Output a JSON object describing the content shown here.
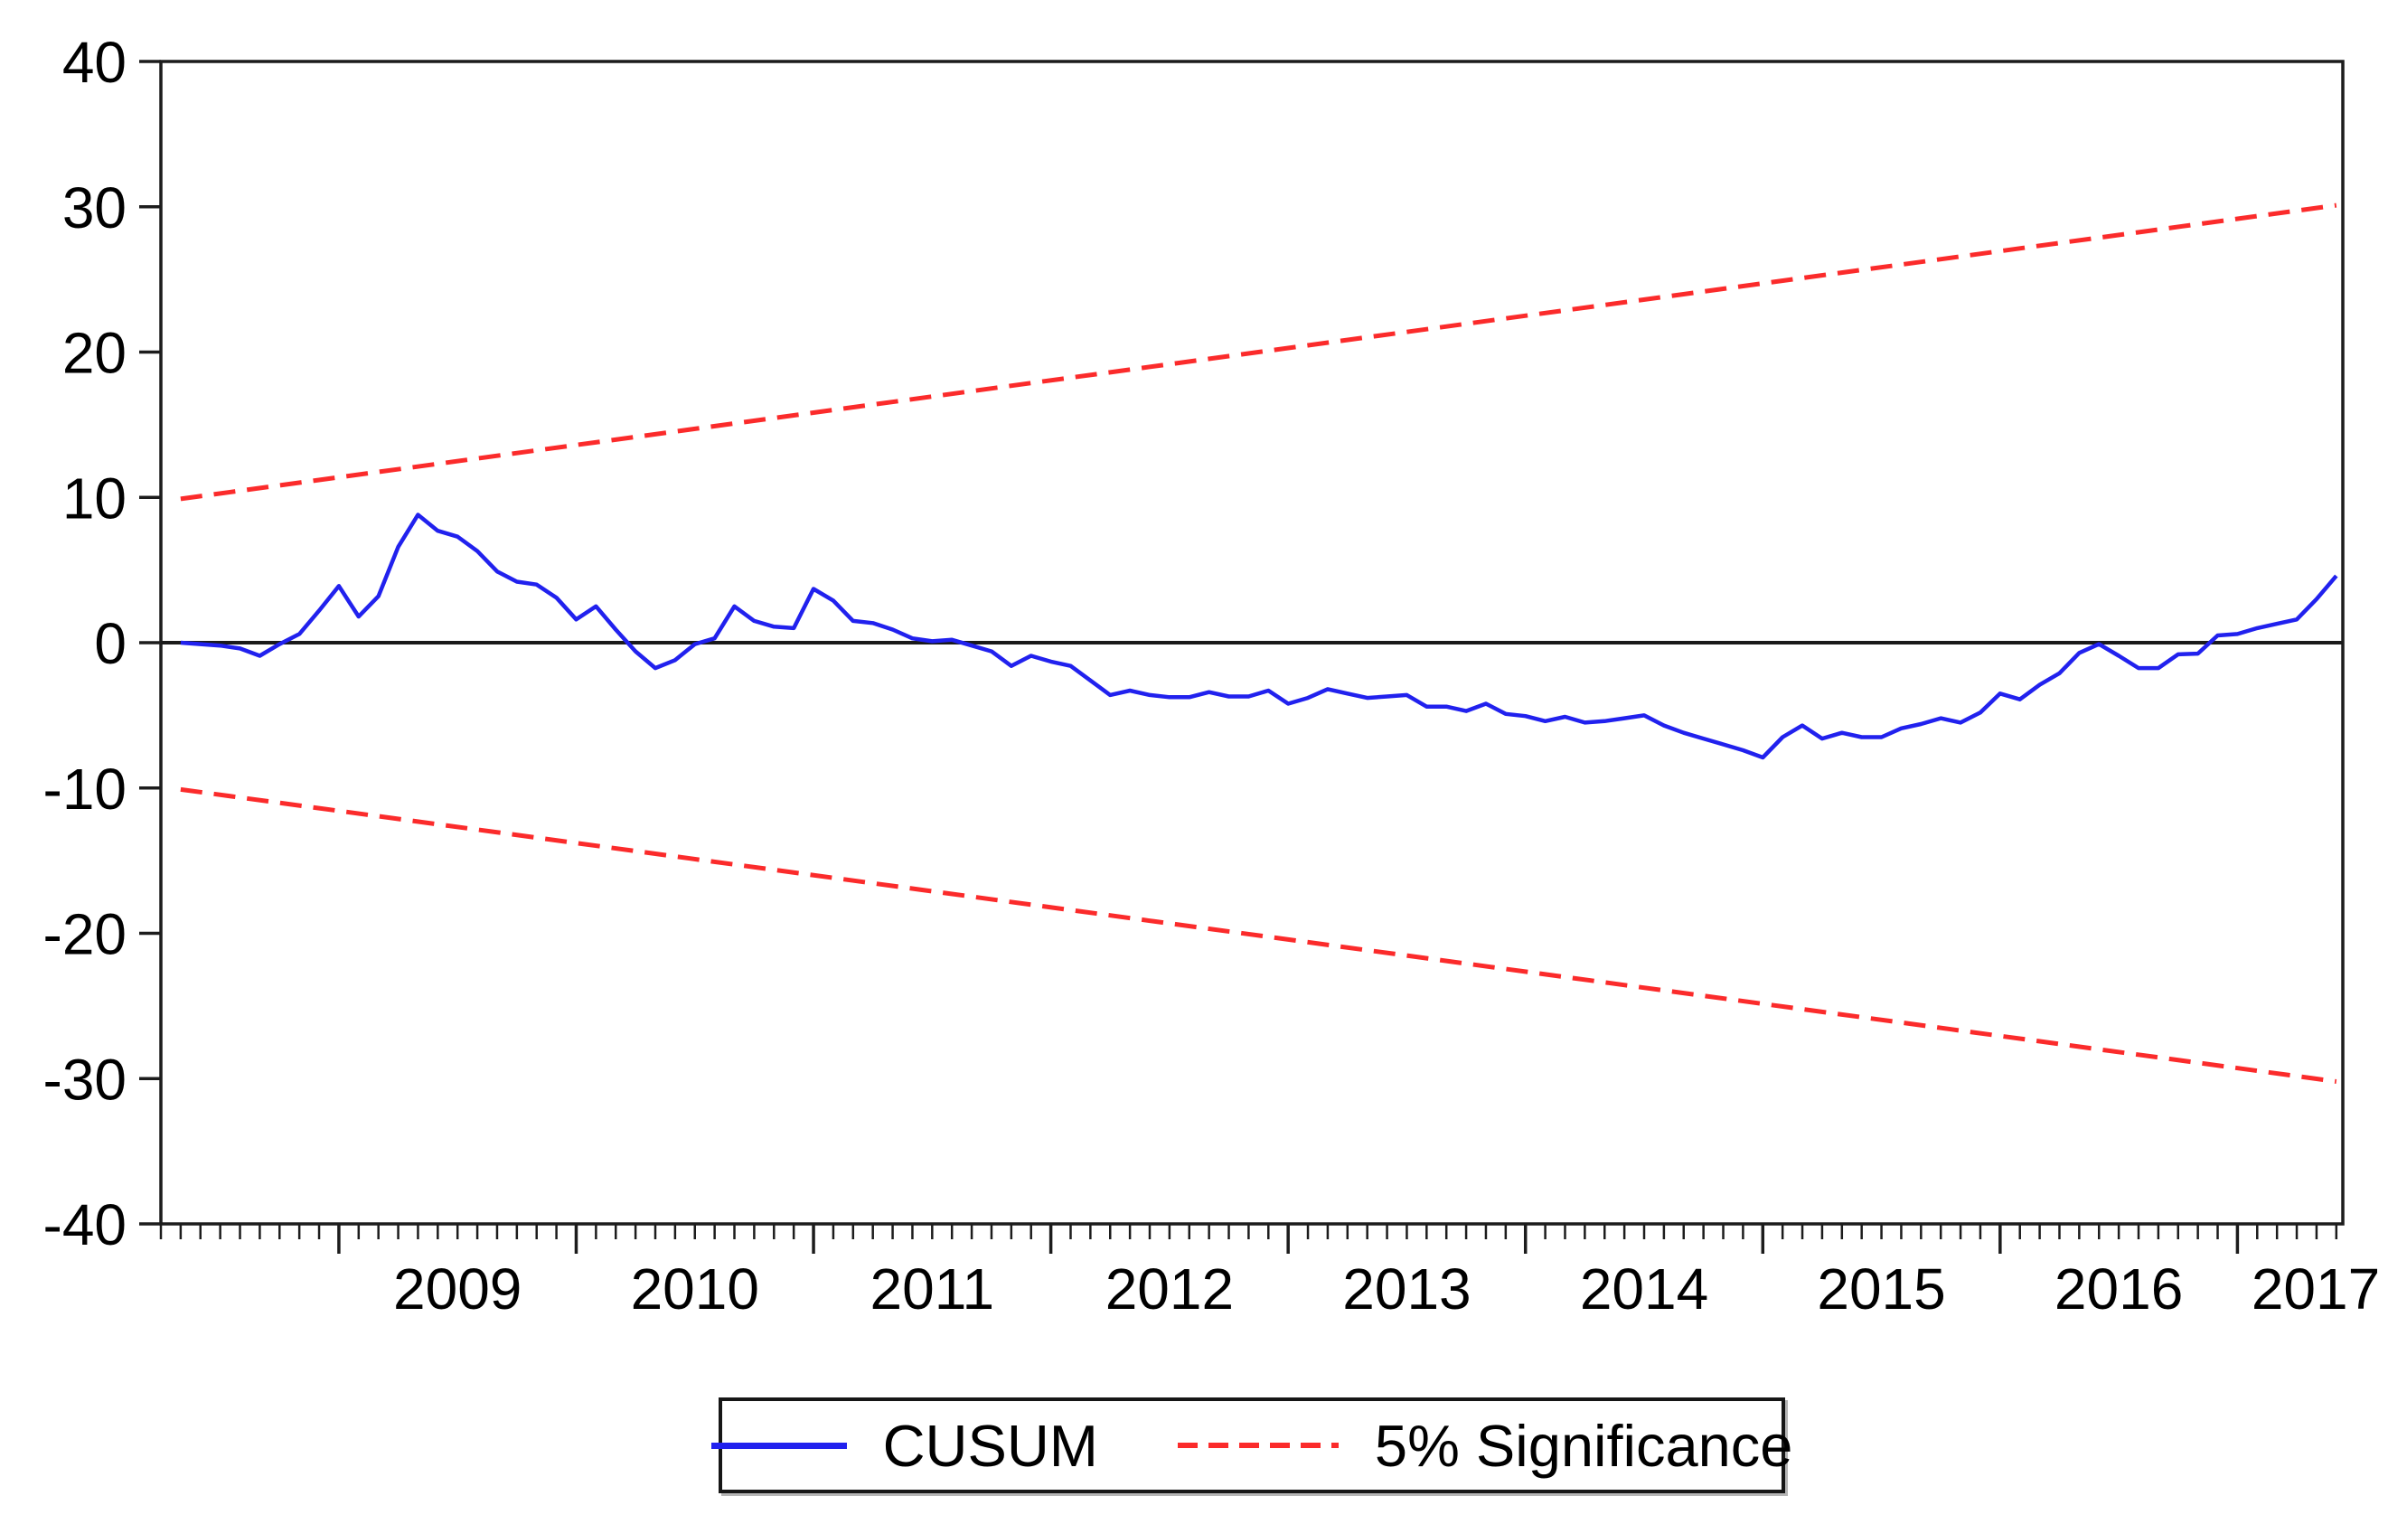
{
  "chart_data": {
    "type": "line",
    "frequency": "monthly",
    "start_period": "2008M05",
    "end_period": "2017M06",
    "series": [
      {
        "name": "CUSUM",
        "style": "solid",
        "color": "#2121ee",
        "values": [
          0.0,
          -0.1,
          -0.2,
          -0.4,
          -0.9,
          -0.1,
          0.6,
          2.2,
          3.9,
          1.8,
          3.2,
          6.6,
          8.8,
          7.7,
          7.3,
          6.3,
          4.9,
          4.2,
          4.0,
          3.1,
          1.6,
          2.5,
          0.9,
          -0.6,
          -1.75,
          -1.2,
          -0.1,
          0.3,
          2.5,
          1.5,
          1.1,
          1.0,
          3.7,
          2.9,
          1.5,
          1.35,
          0.9,
          0.3,
          0.1,
          0.2,
          -0.2,
          -0.6,
          -1.6,
          -0.9,
          -1.3,
          -1.6,
          -2.6,
          -3.6,
          -3.3,
          -3.6,
          -3.75,
          -3.75,
          -3.4,
          -3.7,
          -3.7,
          -3.3,
          -4.2,
          -3.8,
          -3.2,
          -3.5,
          -3.8,
          -3.7,
          -3.6,
          -4.4,
          -4.4,
          -4.7,
          -4.2,
          -4.9,
          -5.05,
          -5.4,
          -5.1,
          -5.5,
          -5.4,
          -5.2,
          -5.0,
          -5.7,
          -6.2,
          -6.6,
          -7.0,
          -7.4,
          -7.9,
          -6.5,
          -5.7,
          -6.6,
          -6.2,
          -6.5,
          -6.5,
          -5.9,
          -5.6,
          -5.2,
          -5.5,
          -4.8,
          -3.5,
          -3.9,
          -2.9,
          -2.1,
          -0.7,
          -0.1,
          -0.9,
          -1.75,
          -1.75,
          -0.8,
          -0.75,
          0.5,
          0.6,
          1.0,
          1.3,
          1.6,
          3.0,
          4.6
        ]
      }
    ],
    "significance_bands": {
      "label": "5% Significance",
      "style": "dashed",
      "color": "#fb2b2b",
      "upper": {
        "start": 9.9,
        "end": 30.1
      },
      "lower": {
        "start": -10.1,
        "end": -30.2
      }
    },
    "x_axis": {
      "year_labels": [
        "2009",
        "2010",
        "2011",
        "2012",
        "2013",
        "2014",
        "2015",
        "2016",
        "2017"
      ],
      "minor_ticks": "monthly",
      "major_ticks": "yearly"
    },
    "y_axis": {
      "min": -40,
      "max": 40,
      "ticks": [
        40,
        30,
        20,
        10,
        0,
        -10,
        -20,
        -30,
        -40
      ]
    },
    "zero_line": true,
    "legend": {
      "items": [
        {
          "label": "CUSUM",
          "style": "solid",
          "color": "#2121ee"
        },
        {
          "label": "5% Significance",
          "style": "dashed",
          "color": "#fb2b2b"
        }
      ]
    }
  }
}
